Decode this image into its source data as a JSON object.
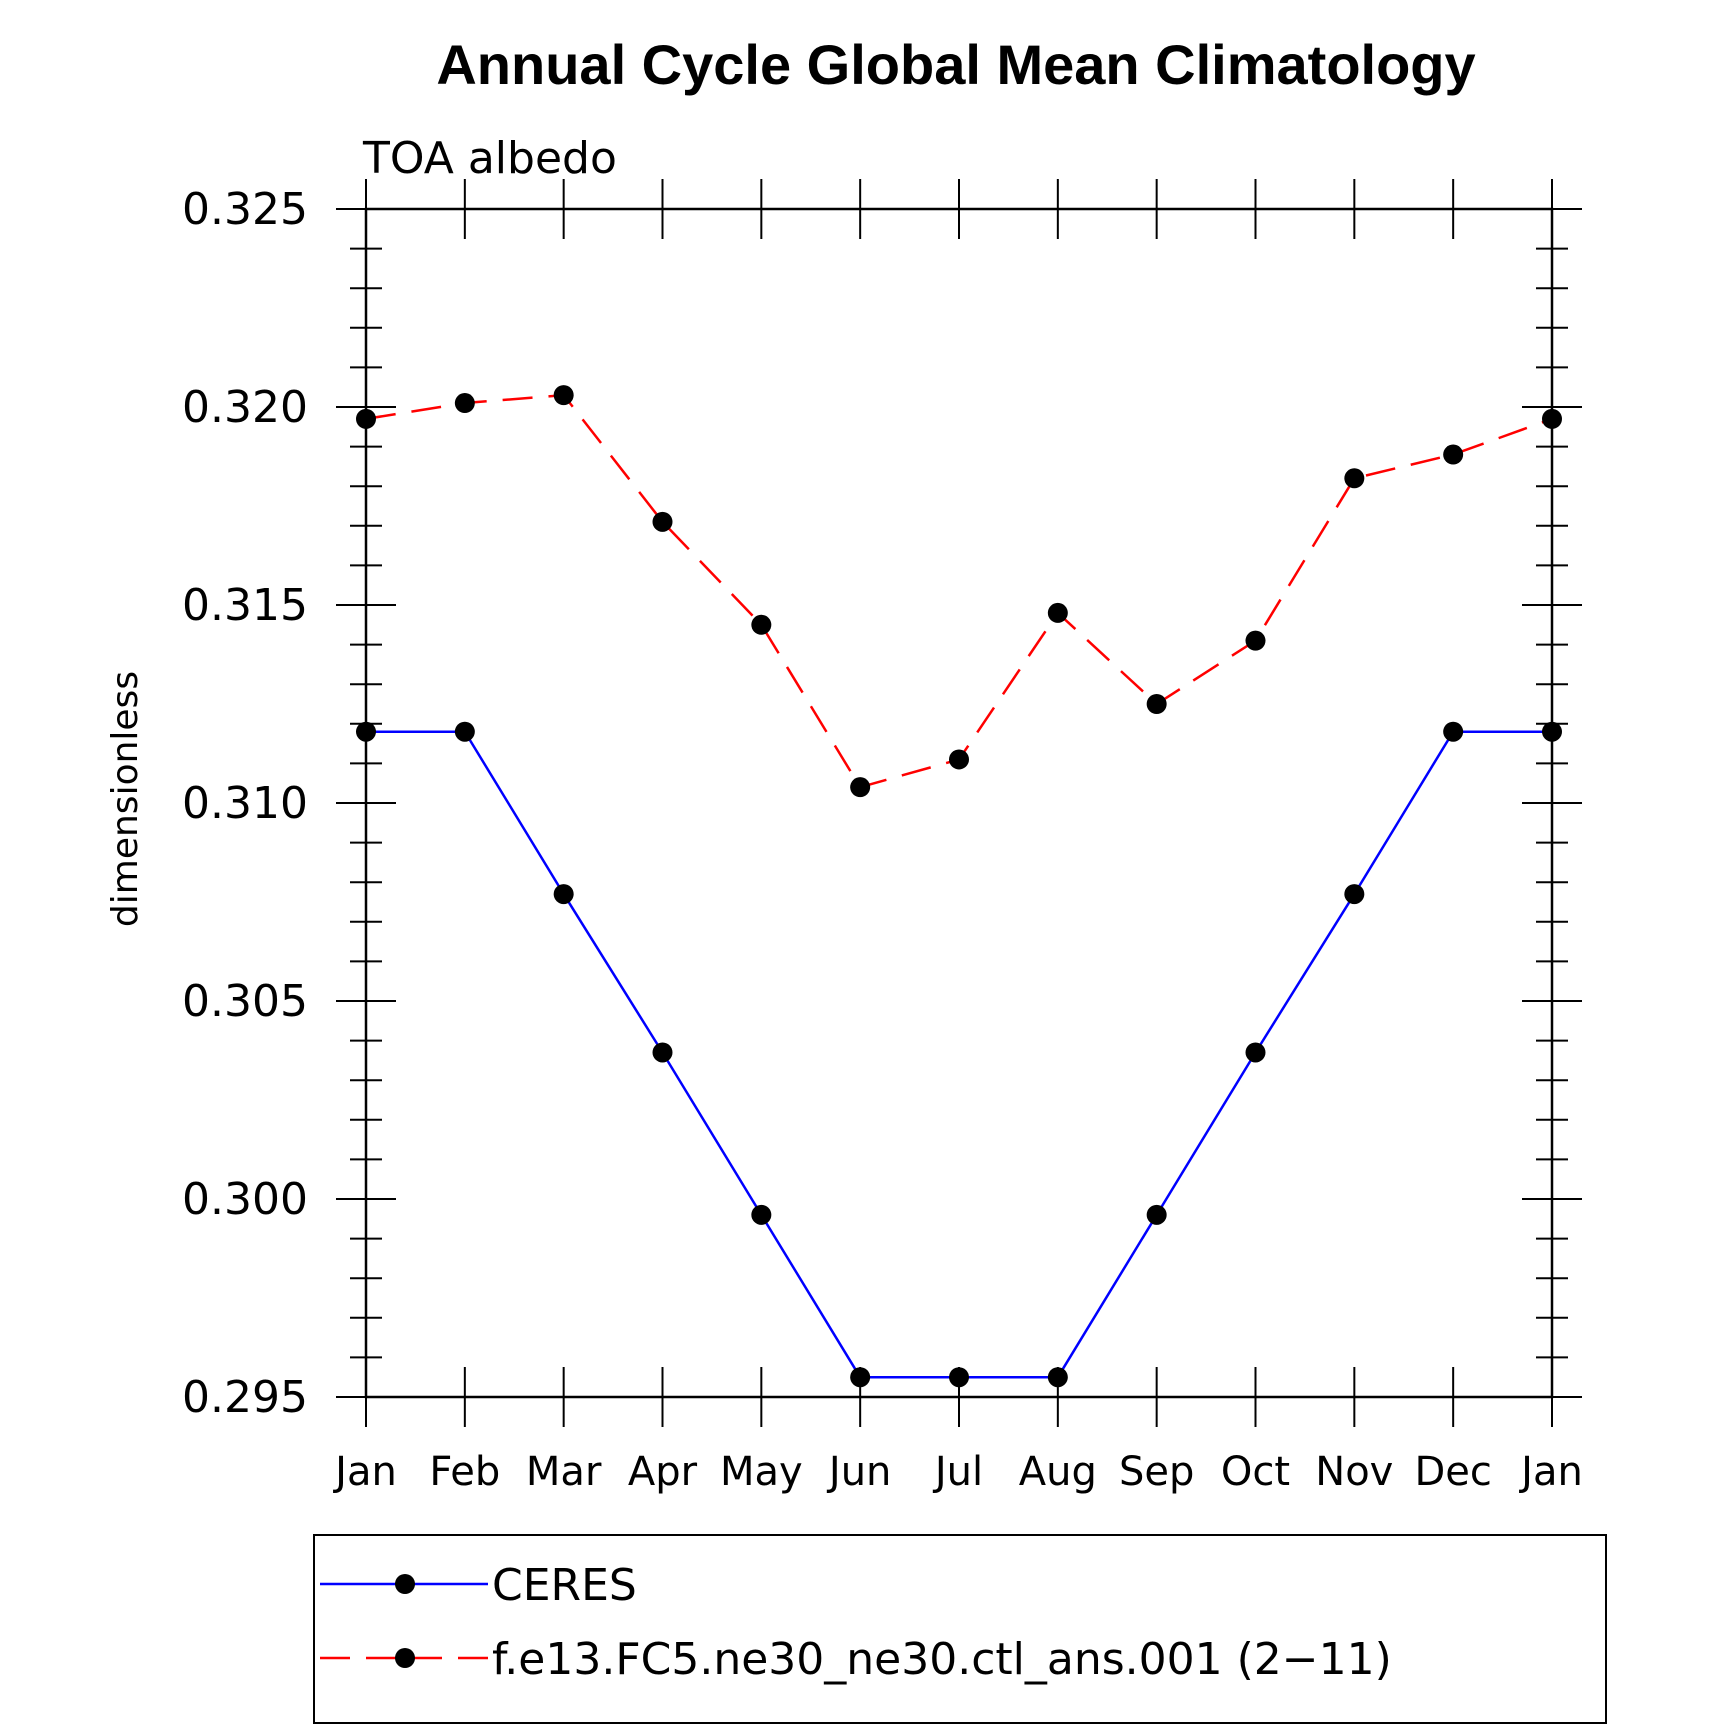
{
  "chart_data": {
    "type": "line",
    "title": "Annual Cycle Global Mean Climatology",
    "subtitle": "TOA albedo",
    "xlabel": "",
    "ylabel": "dimensionless",
    "categories": [
      "Jan",
      "Feb",
      "Mar",
      "Apr",
      "May",
      "Jun",
      "Jul",
      "Aug",
      "Sep",
      "Oct",
      "Nov",
      "Dec",
      "Jan"
    ],
    "ylim": [
      0.295,
      0.325
    ],
    "yticks": [
      "0.295",
      "0.300",
      "0.305",
      "0.310",
      "0.315",
      "0.320",
      "0.325"
    ],
    "grid": false,
    "legend_position": "bottom",
    "series": [
      {
        "name": "CERES",
        "color": "#0000ff",
        "line_style": "solid",
        "marker": "filled-circle",
        "values": [
          0.3118,
          0.3118,
          0.3077,
          0.3037,
          0.2996,
          0.2955,
          0.2955,
          0.2955,
          0.2996,
          0.3037,
          0.3077,
          0.3118,
          0.3118
        ]
      },
      {
        "name": "f.e13.FC5.ne30_ne30.ctl_ans.001 (2−11)",
        "color": "#ff0000",
        "line_style": "dashed",
        "marker": "filled-circle",
        "values": [
          0.3197,
          0.3201,
          0.3203,
          0.3171,
          0.3145,
          0.3104,
          0.3111,
          0.3148,
          0.3125,
          0.3141,
          0.3182,
          0.3188,
          0.3197
        ]
      }
    ]
  }
}
